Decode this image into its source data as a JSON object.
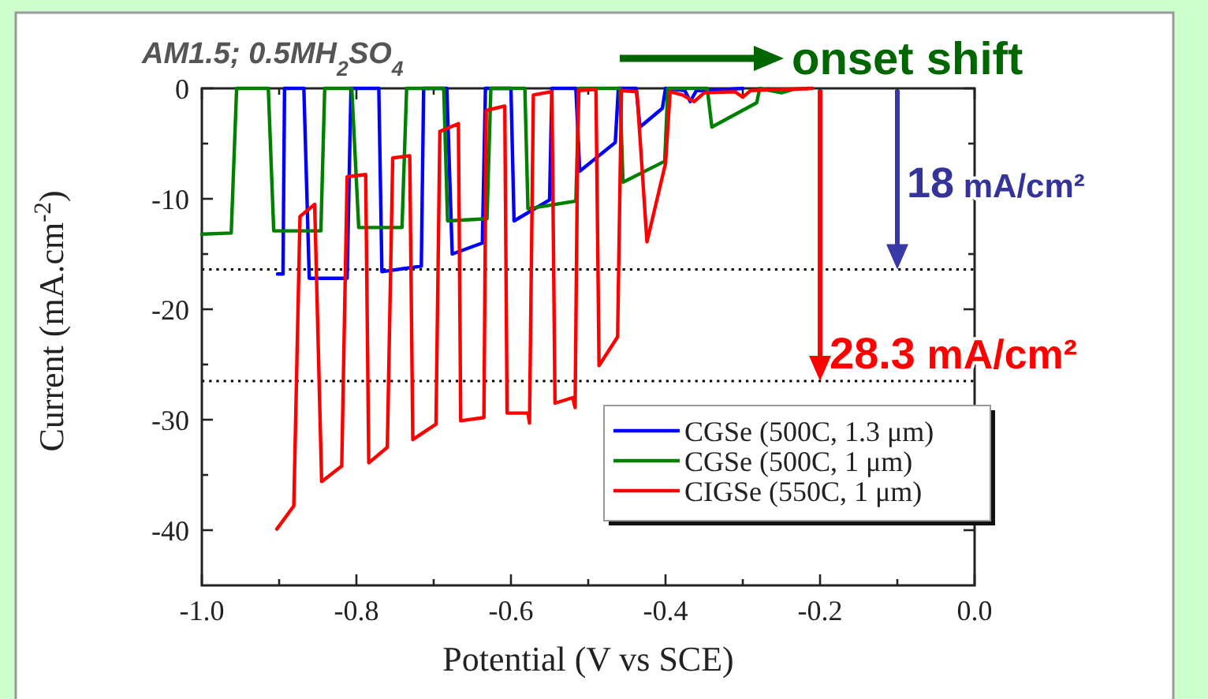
{
  "chart_data": {
    "type": "line",
    "xlabel": "Potential (V vs SCE)",
    "ylabel": "Current (mA.cm$^{-2}$)",
    "xlim": [
      -1,
      0
    ],
    "ylim": [
      -45,
      0
    ],
    "xticks": [
      {
        "value": -1,
        "label": "-1.0"
      },
      {
        "value": -0.9,
        "label": null
      },
      {
        "value": -0.8,
        "label": "-0.8"
      },
      {
        "value": -0.7,
        "label": null
      },
      {
        "value": -0.6,
        "label": "-0.6"
      },
      {
        "value": -0.5,
        "label": null
      },
      {
        "value": -0.4,
        "label": "-0.4"
      },
      {
        "value": -0.3,
        "label": null
      },
      {
        "value": -0.2,
        "label": "-0.2"
      },
      {
        "value": -0.1,
        "label": null
      },
      {
        "value": 0,
        "label": "0.0"
      }
    ],
    "yticks": [
      0,
      {
        "value": -5,
        "label": null
      },
      -10,
      {
        "value": -15,
        "label": null
      },
      -20,
      {
        "value": -25,
        "label": null
      },
      -30,
      {
        "value": -35,
        "label": null
      },
      -40
    ],
    "legend": "bottom right",
    "series": [
      {
        "name": "CGSe (500C, 1.3 μm)",
        "color": "#0000ff",
        "x": [
          -0.902,
          -0.895,
          -0.893,
          -0.868,
          -0.861,
          -0.812,
          -0.807,
          -0.771,
          -0.767,
          -0.716,
          -0.713,
          -0.683,
          -0.676,
          -0.637,
          -0.633,
          -0.6,
          -0.596,
          -0.55,
          -0.547,
          -0.516,
          -0.511,
          -0.465,
          -0.461,
          -0.438,
          -0.433,
          -0.404,
          -0.4,
          -0.375,
          -0.368,
          -0.36,
          -0.34,
          -0.3
        ],
        "values": [
          -16.8,
          -16.8,
          0,
          0,
          -17.2,
          -17.2,
          0,
          0,
          -16.6,
          -16.1,
          0,
          0,
          -15,
          -14,
          0,
          0,
          -12,
          -10.1,
          0,
          0,
          -7.5,
          -4.9,
          0,
          0,
          -3.5,
          -1.8,
          0,
          -0.2,
          -1.2,
          -0.2,
          -0.2,
          0
        ]
      },
      {
        "name": "CGSe (500C, 1 μm)",
        "color": "#008000",
        "x": [
          -1,
          -0.962,
          -0.955,
          -0.914,
          -0.907,
          -0.846,
          -0.841,
          -0.806,
          -0.797,
          -0.741,
          -0.735,
          -0.687,
          -0.682,
          -0.631,
          -0.626,
          -0.582,
          -0.578,
          -0.516,
          -0.512,
          -0.459,
          -0.455,
          -0.401,
          -0.397,
          -0.346,
          -0.34,
          -0.282,
          -0.278,
          -0.25,
          -0.235,
          -0.215
        ],
        "values": [
          -13.2,
          -13.1,
          0,
          0,
          -12.9,
          -12.9,
          0,
          0,
          -12.6,
          -12.6,
          0,
          0,
          -12,
          -11.8,
          0,
          0,
          -10.9,
          -10.2,
          0,
          0,
          -8.5,
          -6.6,
          0,
          0,
          -3.5,
          -1.3,
          0,
          -0.4,
          -0.1,
          0
        ]
      },
      {
        "name": "CIGSe (550C, 1 μm)",
        "color": "#ff0000",
        "x": [
          -0.903,
          -0.881,
          -0.873,
          -0.854,
          -0.845,
          -0.819,
          -0.812,
          -0.788,
          -0.784,
          -0.76,
          -0.753,
          -0.731,
          -0.727,
          -0.697,
          -0.692,
          -0.668,
          -0.665,
          -0.635,
          -0.632,
          -0.608,
          -0.605,
          -0.578,
          -0.576,
          -0.571,
          -0.547,
          -0.543,
          -0.52,
          -0.517,
          -0.513,
          -0.49,
          -0.486,
          -0.462,
          -0.457,
          -0.437,
          -0.424,
          -0.4,
          -0.394,
          -0.378,
          -0.363,
          -0.35,
          -0.31,
          -0.3,
          -0.29,
          -0.25,
          -0.21
        ],
        "values": [
          -39.9,
          -37.8,
          -11.6,
          -10.5,
          -35.6,
          -34.2,
          -8,
          -7.8,
          -33.9,
          -32.5,
          -6.3,
          -6.1,
          -31.8,
          -30.4,
          -3.9,
          -3.2,
          -30.1,
          -29.8,
          -2,
          -1.6,
          -29.4,
          -29.4,
          -30.3,
          -0.6,
          -0.3,
          -28.5,
          -28,
          -28.9,
          -0.2,
          -0.1,
          -25.1,
          -22.5,
          -0.2,
          -0.3,
          -13.9,
          -6.8,
          -0.3,
          -0.6,
          -1.2,
          -0.4,
          -0.3,
          -0.8,
          -0.2,
          -0.1,
          0
        ]
      }
    ],
    "ref_lines": [
      {
        "axis": "y",
        "value": -16.4,
        "color": "#000000",
        "line_style": "dotted"
      },
      {
        "axis": "y",
        "value": -26.5,
        "color": "#000000",
        "line_style": "dotted"
      }
    ],
    "annotations": [
      "AM1.5; 0.5MH$_{2}$SO$_{4}$",
      "onset shift",
      {
        "text": "18 mA/cm²",
        "x": -0.1,
        "y": -16.4
      },
      {
        "text": "28.3 mA/cm²",
        "x": -0.2,
        "y": -26.5
      }
    ]
  }
}
